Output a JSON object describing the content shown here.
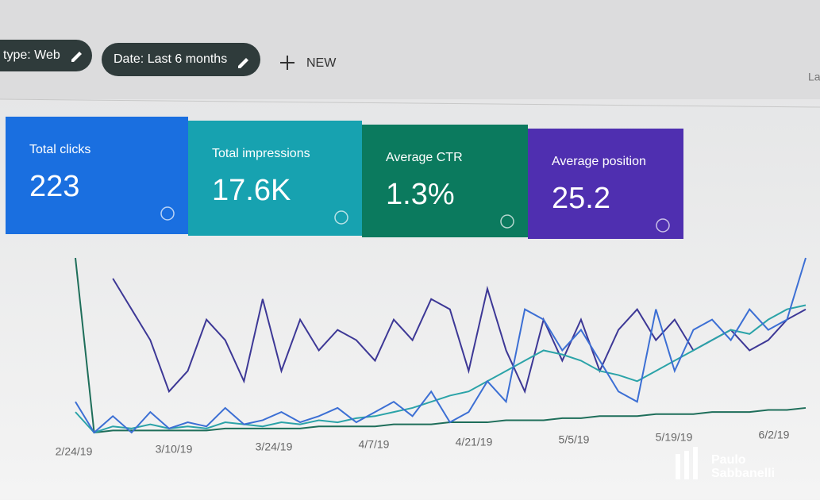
{
  "toolbar": {
    "chips": [
      "type: Web",
      "Date: Last 6 months"
    ],
    "new": "NEW",
    "corner": "La"
  },
  "cards": [
    {
      "label": "Total clicks",
      "value": "223",
      "color": "#1a6fe0"
    },
    {
      "label": "Total impressions",
      "value": "17.6K",
      "color": "#17a2b0"
    },
    {
      "label": "Average CTR",
      "value": "1.3%",
      "color": "#0b7a5e"
    },
    {
      "label": "Average position",
      "value": "25.2",
      "color": "#4f2fb0"
    }
  ],
  "chart_data": {
    "type": "line",
    "x_labels": [
      "2/24/19",
      "3/10/19",
      "3/24/19",
      "4/7/19",
      "4/21/19",
      "5/5/19",
      "5/19/19",
      "6/2/19"
    ],
    "series": [
      {
        "name": "Average position",
        "color": "#3d3896",
        "values": [
          null,
          null,
          75,
          60,
          45,
          20,
          30,
          55,
          45,
          25,
          65,
          30,
          55,
          40,
          50,
          45,
          35,
          55,
          45,
          65,
          60,
          30,
          70,
          40,
          20,
          55,
          35,
          55,
          30,
          50,
          60,
          45,
          55,
          40,
          45,
          50,
          40,
          45,
          55,
          60
        ]
      },
      {
        "name": "Average CTR",
        "color": "#1e6e5a",
        "values": [
          85,
          0,
          1,
          1,
          1,
          1,
          1,
          1,
          2,
          2,
          2,
          2,
          2,
          3,
          3,
          3,
          3,
          4,
          4,
          4,
          5,
          5,
          5,
          6,
          6,
          6,
          7,
          7,
          8,
          8,
          8,
          9,
          9,
          9,
          10,
          10,
          10,
          11,
          11,
          12
        ]
      },
      {
        "name": "Total impressions",
        "color": "#2ba3a8",
        "values": [
          10,
          0,
          3,
          2,
          4,
          2,
          3,
          2,
          5,
          4,
          3,
          5,
          4,
          6,
          5,
          7,
          8,
          10,
          12,
          15,
          18,
          20,
          25,
          30,
          35,
          40,
          38,
          35,
          30,
          28,
          25,
          30,
          35,
          40,
          45,
          50,
          48,
          55,
          60,
          62
        ]
      },
      {
        "name": "Total clicks",
        "color": "#3c6fd4",
        "values": [
          15,
          0,
          8,
          0,
          10,
          2,
          5,
          3,
          12,
          4,
          6,
          10,
          5,
          8,
          12,
          5,
          10,
          15,
          8,
          20,
          5,
          10,
          25,
          15,
          60,
          55,
          40,
          50,
          35,
          20,
          15,
          60,
          30,
          50,
          55,
          45,
          60,
          50,
          55,
          85
        ]
      }
    ]
  },
  "watermark": [
    "Paulo",
    "Sabbanelli"
  ]
}
